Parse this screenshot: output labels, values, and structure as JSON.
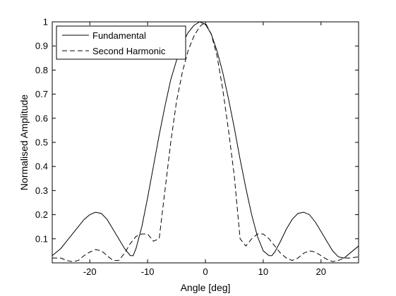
{
  "chart_data": {
    "type": "line",
    "xlabel": "Angle [deg]",
    "ylabel": "Normalised Amplitude",
    "xlim": [
      -26.5,
      26.5
    ],
    "ylim": [
      0,
      1
    ],
    "xticks": [
      -20,
      -10,
      0,
      10,
      20
    ],
    "xtick_labels": [
      "-20",
      "-10",
      "0",
      "10",
      "20"
    ],
    "yticks": [
      0.1,
      0.2,
      0.3,
      0.4,
      0.5,
      0.6,
      0.7,
      0.8,
      0.9,
      1
    ],
    "ytick_labels": [
      "0.1",
      "0.2",
      "0.3",
      "0.4",
      "0.5",
      "0.6",
      "0.7",
      "0.8",
      "0.9",
      "1"
    ],
    "grid": false,
    "legend_position": "top-left",
    "series": [
      {
        "name": "Fundamental",
        "style": "solid",
        "color": "#000000",
        "x": [
          -26.5,
          -25,
          -24,
          -23,
          -22,
          -21,
          -20,
          -19,
          -18,
          -17,
          -16,
          -15,
          -14,
          -13,
          -12.5,
          -12,
          -11,
          -10,
          -9,
          -8,
          -7,
          -6,
          -5,
          -4,
          -3,
          -2,
          -1,
          0,
          1,
          2,
          3,
          4,
          5,
          6,
          7,
          8,
          9,
          10,
          11,
          11.5,
          12,
          13,
          14,
          15,
          16,
          17,
          18,
          19,
          20,
          21,
          22,
          23,
          24,
          25,
          26.5
        ],
        "y": [
          0.03,
          0.06,
          0.09,
          0.12,
          0.15,
          0.18,
          0.2,
          0.21,
          0.205,
          0.18,
          0.14,
          0.1,
          0.06,
          0.03,
          0.03,
          0.06,
          0.15,
          0.27,
          0.4,
          0.53,
          0.65,
          0.76,
          0.84,
          0.91,
          0.955,
          0.985,
          1.0,
          0.99,
          0.95,
          0.88,
          0.79,
          0.68,
          0.56,
          0.43,
          0.31,
          0.2,
          0.11,
          0.05,
          0.03,
          0.03,
          0.045,
          0.09,
          0.14,
          0.18,
          0.205,
          0.21,
          0.2,
          0.17,
          0.13,
          0.09,
          0.05,
          0.025,
          0.02,
          0.04,
          0.07
        ]
      },
      {
        "name": "Second Harmonic",
        "style": "dashed",
        "color": "#000000",
        "x": [
          -26.5,
          -25,
          -24,
          -23,
          -22,
          -21,
          -20,
          -19,
          -18,
          -17,
          -16,
          -15,
          -14,
          -13,
          -12,
          -11,
          -10,
          -9,
          -8,
          -7,
          -6,
          -5,
          -4,
          -3,
          -2,
          -1,
          -0.5,
          0,
          1,
          2,
          3,
          4,
          5,
          6,
          7,
          8,
          9,
          10,
          11,
          12,
          13,
          14,
          15,
          16,
          17,
          18,
          19,
          20,
          21,
          22,
          23,
          24,
          25,
          26.5
        ],
        "y": [
          0.02,
          0.02,
          0.01,
          0.005,
          0.01,
          0.03,
          0.045,
          0.055,
          0.05,
          0.03,
          0.01,
          0.01,
          0.04,
          0.08,
          0.11,
          0.12,
          0.12,
          0.09,
          0.1,
          0.3,
          0.5,
          0.67,
          0.79,
          0.88,
          0.94,
          0.98,
          0.99,
          0.995,
          0.95,
          0.86,
          0.72,
          0.55,
          0.36,
          0.1,
          0.07,
          0.1,
          0.12,
          0.12,
          0.1,
          0.07,
          0.04,
          0.02,
          0.01,
          0.02,
          0.04,
          0.05,
          0.045,
          0.03,
          0.015,
          0.005,
          0.01,
          0.02,
          0.02,
          0.025
        ]
      }
    ]
  }
}
